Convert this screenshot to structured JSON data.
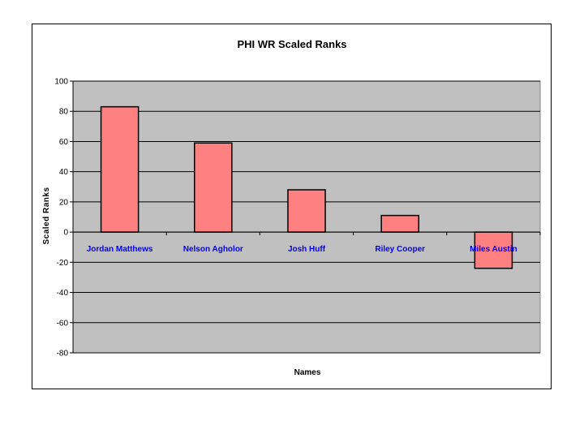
{
  "chart_data": {
    "type": "bar",
    "title": "PHI WR Scaled Ranks",
    "xlabel": "Names",
    "ylabel": "Scaled Ranks",
    "categories": [
      "Jordan Matthews",
      "Nelson Agholor",
      "Josh Huff",
      "Riley Cooper",
      "Miles Austin"
    ],
    "values": [
      83,
      59,
      28,
      11,
      -24
    ],
    "ylim": [
      -80,
      100
    ],
    "yticks": [
      100,
      80,
      60,
      40,
      20,
      0,
      -20,
      -40,
      -60,
      -80
    ],
    "grid": true,
    "legend": "none",
    "colors": {
      "bar_fill": "#ff8080",
      "bar_stroke": "#000000",
      "plot_background": "#c0c0c0",
      "category_label": "#0000ff"
    }
  }
}
